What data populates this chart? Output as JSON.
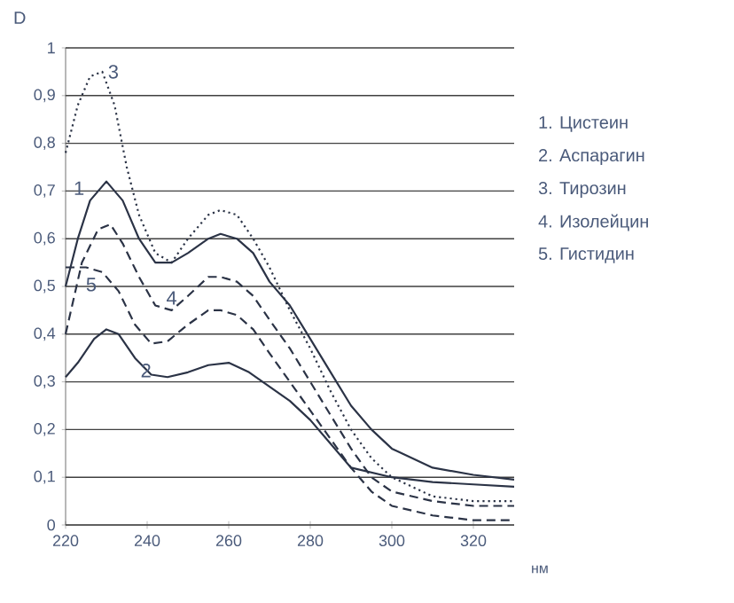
{
  "chart_data": {
    "type": "line",
    "xlabel": "нм",
    "ylabel": "D",
    "series": [
      {
        "color": "#2b3346",
        "line_style": "solid",
        "x": [
          220,
          223,
          226,
          230,
          234,
          238,
          242,
          246,
          250,
          255,
          258,
          262,
          266,
          270,
          275,
          280,
          285,
          290,
          295,
          300,
          305,
          310,
          320,
          330
        ],
        "values": [
          0.5,
          0.6,
          0.68,
          0.72,
          0.68,
          0.6,
          0.55,
          0.55,
          0.57,
          0.6,
          0.61,
          0.6,
          0.57,
          0.51,
          0.46,
          0.39,
          0.32,
          0.25,
          0.2,
          0.16,
          0.14,
          0.12,
          0.105,
          0.095
        ]
      },
      {
        "color": "#2b3346",
        "line_style": "solid",
        "x": [
          220,
          223,
          227,
          230,
          233,
          237,
          241,
          245,
          250,
          255,
          260,
          265,
          270,
          275,
          280,
          285,
          290,
          295,
          300,
          310,
          320,
          330
        ],
        "values": [
          0.31,
          0.34,
          0.39,
          0.41,
          0.4,
          0.35,
          0.315,
          0.31,
          0.32,
          0.335,
          0.34,
          0.32,
          0.29,
          0.26,
          0.22,
          0.17,
          0.12,
          0.11,
          0.1,
          0.09,
          0.085,
          0.08
        ]
      },
      {
        "color": "#2b3346",
        "line_style": "dotted",
        "x": [
          220,
          223,
          226,
          229,
          232,
          235,
          238,
          242,
          246,
          250,
          255,
          258,
          262,
          266,
          270,
          275,
          280,
          285,
          290,
          295,
          300,
          310,
          320,
          330
        ],
        "values": [
          0.78,
          0.88,
          0.94,
          0.95,
          0.88,
          0.75,
          0.65,
          0.57,
          0.55,
          0.6,
          0.65,
          0.66,
          0.65,
          0.6,
          0.54,
          0.45,
          0.37,
          0.28,
          0.2,
          0.14,
          0.1,
          0.06,
          0.05,
          0.05
        ]
      },
      {
        "color": "#2b3346",
        "line_style": "dashed",
        "x": [
          220,
          224,
          228,
          231,
          234,
          238,
          242,
          246,
          250,
          255,
          258,
          262,
          266,
          270,
          275,
          280,
          285,
          290,
          295,
          300,
          310,
          320,
          330
        ],
        "values": [
          0.4,
          0.55,
          0.62,
          0.63,
          0.59,
          0.52,
          0.46,
          0.45,
          0.48,
          0.52,
          0.52,
          0.51,
          0.48,
          0.43,
          0.37,
          0.3,
          0.23,
          0.16,
          0.1,
          0.07,
          0.05,
          0.04,
          0.04
        ]
      },
      {
        "color": "#2b3346",
        "line_style": "dashed",
        "x": [
          220,
          225,
          229,
          233,
          237,
          241,
          245,
          250,
          255,
          258,
          262,
          266,
          270,
          275,
          280,
          285,
          290,
          295,
          300,
          310,
          320,
          330
        ],
        "values": [
          0.54,
          0.54,
          0.53,
          0.49,
          0.42,
          0.38,
          0.385,
          0.42,
          0.45,
          0.45,
          0.44,
          0.41,
          0.36,
          0.3,
          0.24,
          0.18,
          0.12,
          0.07,
          0.04,
          0.02,
          0.01,
          0.01
        ]
      }
    ],
    "xlim": [
      220,
      330
    ],
    "ylim": [
      0,
      1
    ],
    "xticks": [
      220,
      240,
      260,
      280,
      300,
      320
    ],
    "yticks": [
      0,
      {
        "value": 0.1,
        "label": "0,1"
      },
      {
        "value": 0.2,
        "label": "0,2"
      },
      {
        "value": 0.3,
        "label": "0,3"
      },
      {
        "value": 0.4,
        "label": "0,4"
      },
      {
        "value": 0.5,
        "label": "0,5"
      },
      {
        "value": 0.6,
        "label": "0,6"
      },
      {
        "value": 0.7,
        "label": "0,7"
      },
      {
        "value": 0.8,
        "label": "0,8"
      },
      {
        "value": 0.9,
        "label": "0,9"
      },
      1
    ],
    "grid": "y",
    "annotations": [
      "1. Цистеин",
      "2. Аспарагин",
      "3. Тирозин",
      "4. Изолейцин",
      "5. Гистидин",
      {
        "text": "1",
        "x": 226,
        "y": 0.68
      },
      {
        "text": "2",
        "x": 237,
        "y": 0.35
      },
      {
        "text": "3",
        "x": 229,
        "y": 0.95
      },
      {
        "text": "4",
        "x": 246,
        "y": 0.45
      },
      {
        "text": "5",
        "x": 229,
        "y": 0.53
      }
    ]
  }
}
